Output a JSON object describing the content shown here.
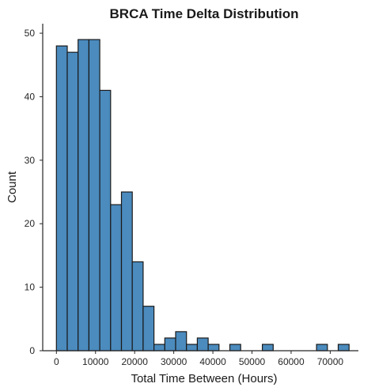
{
  "chart_data": {
    "type": "bar",
    "title": "BRCA Time Delta Distribution",
    "xlabel": "Total Time Between (Hours)",
    "ylabel": "Count",
    "bin_width": 2771,
    "bins": [
      {
        "x0": 0,
        "count": 48
      },
      {
        "x0": 2771,
        "count": 47
      },
      {
        "x0": 5542,
        "count": 49
      },
      {
        "x0": 8313,
        "count": 49
      },
      {
        "x0": 11084,
        "count": 41
      },
      {
        "x0": 13855,
        "count": 23
      },
      {
        "x0": 16626,
        "count": 25
      },
      {
        "x0": 19397,
        "count": 14
      },
      {
        "x0": 22168,
        "count": 7
      },
      {
        "x0": 24939,
        "count": 1
      },
      {
        "x0": 27710,
        "count": 2
      },
      {
        "x0": 30481,
        "count": 3
      },
      {
        "x0": 33252,
        "count": 1
      },
      {
        "x0": 36023,
        "count": 2
      },
      {
        "x0": 38794,
        "count": 1
      },
      {
        "x0": 41565,
        "count": 0
      },
      {
        "x0": 44336,
        "count": 1
      },
      {
        "x0": 47107,
        "count": 0
      },
      {
        "x0": 49878,
        "count": 0
      },
      {
        "x0": 52649,
        "count": 1
      },
      {
        "x0": 55420,
        "count": 0
      },
      {
        "x0": 58191,
        "count": 0
      },
      {
        "x0": 60962,
        "count": 0
      },
      {
        "x0": 63733,
        "count": 0
      },
      {
        "x0": 66504,
        "count": 1
      },
      {
        "x0": 69275,
        "count": 0
      },
      {
        "x0": 72046,
        "count": 1
      }
    ],
    "xlim": [
      -3500,
      77200
    ],
    "ylim": [
      0,
      51.5
    ],
    "xticks": [
      0,
      10000,
      20000,
      30000,
      40000,
      50000,
      60000,
      70000
    ],
    "xtick_labels": [
      "0",
      "10000",
      "20000",
      "30000",
      "40000",
      "50000",
      "60000",
      "70000"
    ],
    "yticks": [
      0,
      10,
      20,
      30,
      40,
      50
    ],
    "ytick_labels": [
      "0",
      "10",
      "20",
      "30",
      "40",
      "50"
    ],
    "grid": false,
    "bar_color": "#4b8bbe",
    "edge_color": "#1a1a1a"
  }
}
